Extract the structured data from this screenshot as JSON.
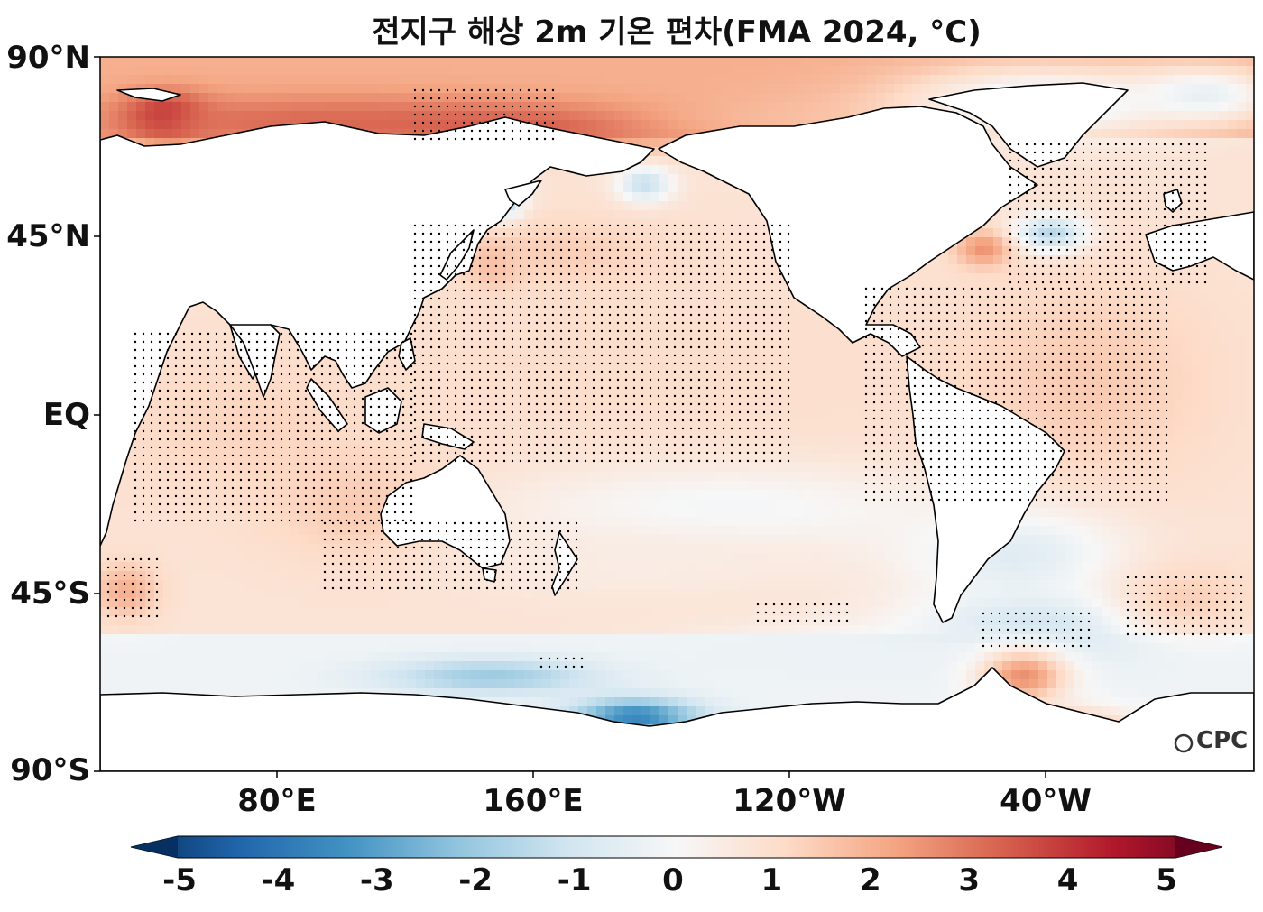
{
  "title": "전지구 해상 2m 기온 편차(FMA 2024, °C)",
  "map": {
    "projection": "equirectangular",
    "lon_start_east": 25,
    "lat_range": [
      -90,
      90
    ],
    "lat_ticks": [
      "90°N",
      "45°N",
      "EQ",
      "45°S",
      "90°S"
    ],
    "lon_ticks": [
      "80°E",
      "160°E",
      "120°W",
      "40°W"
    ],
    "stippling": "significant anomalies (dots)",
    "land_color": "#ffffff",
    "coastline_color": "#000000"
  },
  "colorbar": {
    "min": -5,
    "max": 5,
    "tick_labels": [
      "-5",
      "-4",
      "-3",
      "-2",
      "-1",
      "0",
      "1",
      "2",
      "3",
      "4",
      "5"
    ],
    "colormap": "RdBu_r",
    "extend": "both"
  },
  "logo_text": "CPC"
}
